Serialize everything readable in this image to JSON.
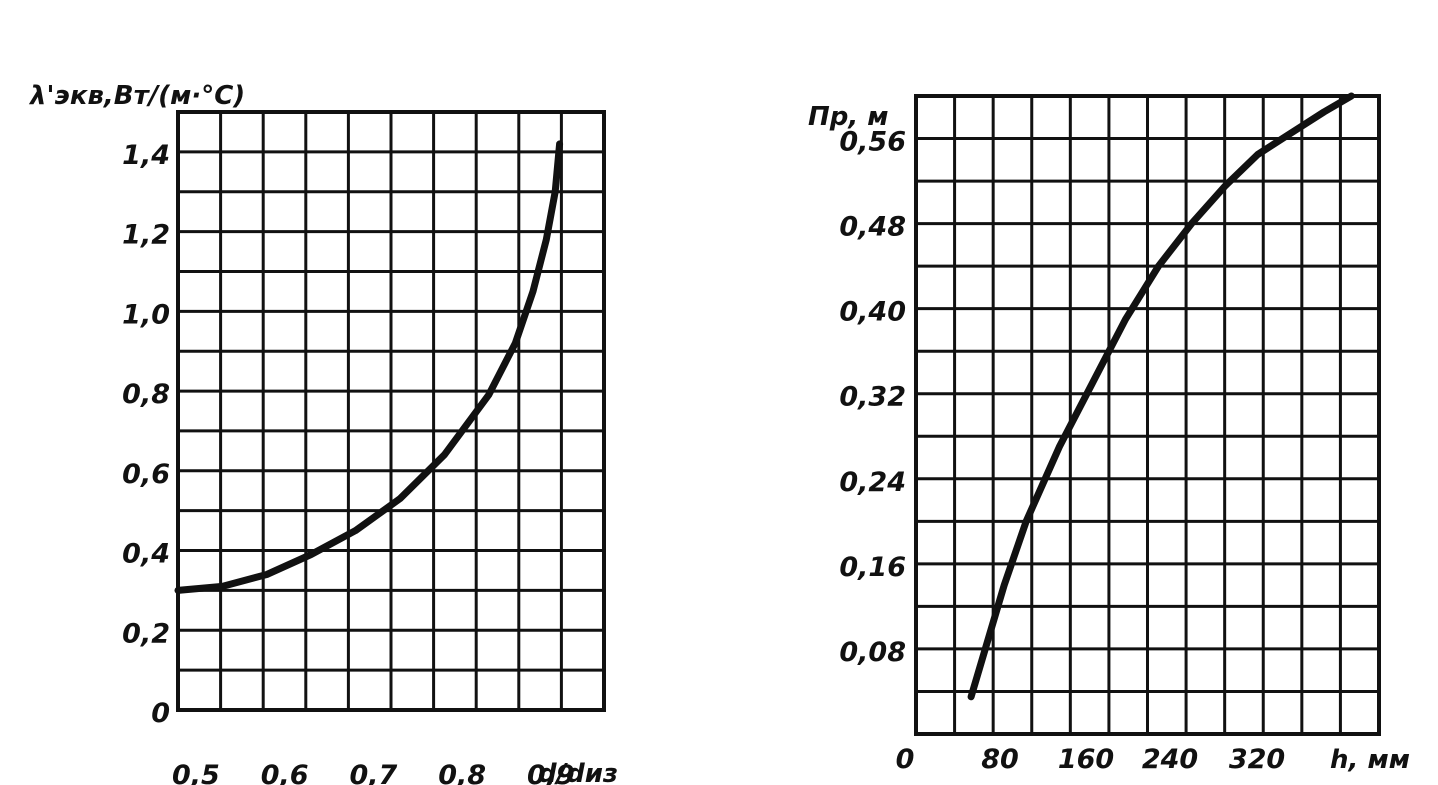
{
  "chart_data": [
    {
      "type": "line",
      "ylabel": "λ'экв,Вт/(м·°C)",
      "xlabel": "d/dиз",
      "x_ticks": [
        "0,5",
        "0,6",
        "0,7",
        "0,8",
        "0,9"
      ],
      "y_ticks": [
        "0",
        "0,2",
        "0,4",
        "0,6",
        "0,8",
        "1,0",
        "1,2",
        "1,4"
      ],
      "xlim": [
        0.5,
        0.98
      ],
      "ylim": [
        0,
        1.5
      ],
      "grid": true,
      "series": [
        {
          "x": [
            0.5,
            0.55,
            0.6,
            0.65,
            0.7,
            0.75,
            0.8,
            0.85,
            0.88,
            0.9,
            0.915,
            0.925,
            0.93
          ],
          "y": [
            0.3,
            0.31,
            0.34,
            0.39,
            0.45,
            0.53,
            0.64,
            0.79,
            0.92,
            1.05,
            1.18,
            1.3,
            1.42
          ]
        }
      ]
    },
    {
      "type": "line",
      "ylabel": "Пр, м",
      "xlabel": "h, мм",
      "x_ticks": [
        "0",
        "80",
        "160",
        "240",
        "320"
      ],
      "y_ticks": [
        "0,08",
        "0,16",
        "0,24",
        "0,32",
        "0,40",
        "0,48",
        "0,56"
      ],
      "xlim": [
        0,
        420
      ],
      "ylim": [
        0,
        0.6
      ],
      "grid": true,
      "series": [
        {
          "x": [
            50,
            60,
            80,
            100,
            130,
            160,
            190,
            220,
            250,
            280,
            310,
            340,
            370,
            395
          ],
          "y": [
            0.035,
            0.07,
            0.14,
            0.2,
            0.27,
            0.33,
            0.39,
            0.44,
            0.48,
            0.515,
            0.545,
            0.565,
            0.585,
            0.6
          ]
        }
      ]
    }
  ]
}
